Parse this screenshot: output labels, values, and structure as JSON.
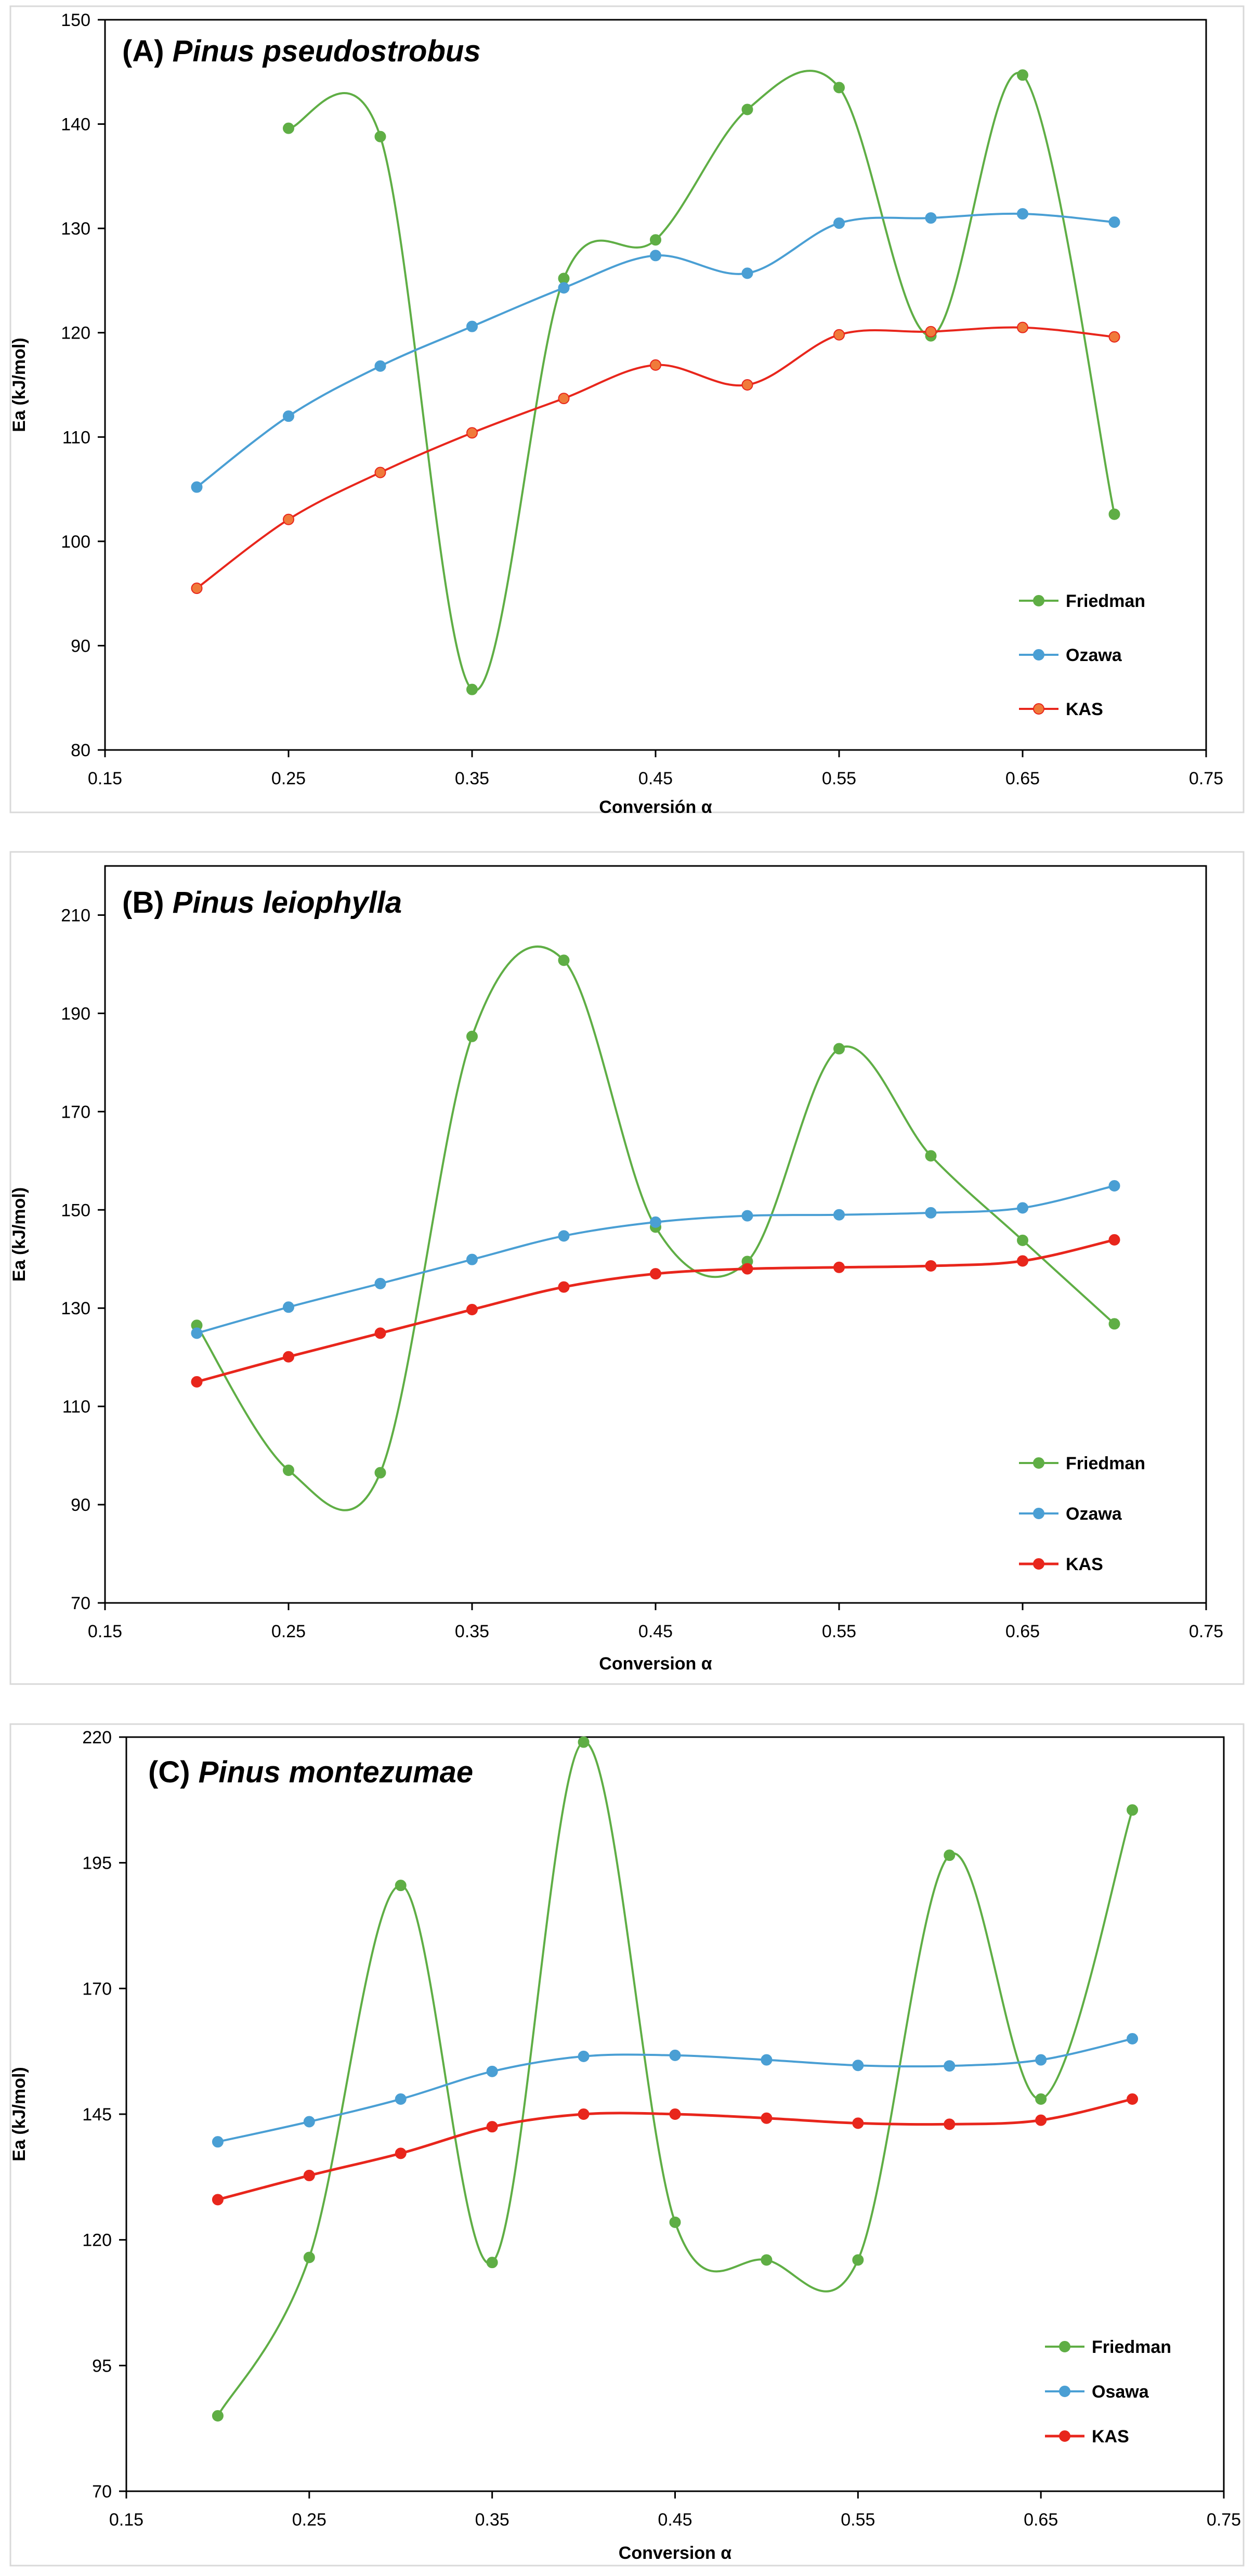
{
  "chart_data": [
    {
      "type": "line",
      "title_prefix": "(A)",
      "title_species": "Pinus pseudostrobus",
      "xlabel": "Conversión α",
      "ylabel": "Ea (kJ/mol)",
      "xlim": [
        0.15,
        0.75
      ],
      "ylim": [
        80,
        150
      ],
      "xticks": [
        0.15,
        0.25,
        0.35,
        0.45,
        0.55,
        0.65,
        0.75
      ],
      "xtick_labels": [
        "0.15",
        "0.25",
        "0.35",
        "0.45",
        "0.55",
        "0.65",
        "0.75"
      ],
      "yticks": [
        80,
        90,
        100,
        110,
        120,
        130,
        140,
        150
      ],
      "ytick_labels": [
        "80",
        "90",
        "100",
        "110",
        "120",
        "130",
        "140",
        "150"
      ],
      "grid": false,
      "legend_position": "bottom-right",
      "series": [
        {
          "name": "Friedman",
          "color": "#5fae45",
          "width": 4,
          "marker_color": "#5fae45",
          "x": [
            0.25,
            0.3,
            0.35,
            0.4,
            0.45,
            0.5,
            0.55,
            0.6,
            0.65,
            0.7
          ],
          "values": [
            139.6,
            138.8,
            85.8,
            125.2,
            128.9,
            141.4,
            143.5,
            119.7,
            144.7,
            102.6
          ]
        },
        {
          "name": "Ozawa",
          "color": "#4a9fd4",
          "width": 4,
          "marker_color": "#4a9fd4",
          "x": [
            0.2,
            0.25,
            0.3,
            0.35,
            0.4,
            0.45,
            0.5,
            0.55,
            0.6,
            0.65,
            0.7
          ],
          "values": [
            105.2,
            112.0,
            116.8,
            120.6,
            124.3,
            127.4,
            125.7,
            130.5,
            131.0,
            131.4,
            130.6
          ]
        },
        {
          "name": "KAS",
          "color": "#e8261c",
          "width": 4,
          "marker_color": "#f07a3a",
          "x": [
            0.2,
            0.25,
            0.3,
            0.35,
            0.4,
            0.45,
            0.5,
            0.55,
            0.6,
            0.65,
            0.7
          ],
          "values": [
            95.5,
            102.1,
            106.6,
            110.4,
            113.7,
            116.9,
            115.0,
            119.8,
            120.1,
            120.5,
            119.6
          ]
        }
      ]
    },
    {
      "type": "line",
      "title_prefix": "(B)",
      "title_species": "Pinus leiophylla",
      "xlabel": "Conversion α",
      "ylabel": "Ea (kJ/mol)",
      "xlim": [
        0.15,
        0.75
      ],
      "ylim": [
        70,
        220
      ],
      "xticks": [
        0.15,
        0.25,
        0.35,
        0.45,
        0.55,
        0.65,
        0.75
      ],
      "xtick_labels": [
        "0.15",
        "0.25",
        "0.35",
        "0.45",
        "0.55",
        "0.65",
        "0.75"
      ],
      "yticks": [
        70,
        90,
        110,
        130,
        150,
        170,
        190,
        210
      ],
      "ytick_labels": [
        "70",
        "90",
        "110",
        "130",
        "150",
        "170",
        "190",
        "210"
      ],
      "grid": false,
      "legend_position": "bottom-right",
      "series": [
        {
          "name": "Friedman",
          "color": "#5fae45",
          "width": 4,
          "marker_color": "#5fae45",
          "x": [
            0.2,
            0.25,
            0.3,
            0.35,
            0.4,
            0.45,
            0.5,
            0.55,
            0.6,
            0.65,
            0.7
          ],
          "values": [
            126.5,
            97.0,
            96.5,
            185.3,
            200.8,
            146.5,
            139.5,
            182.8,
            161.0,
            143.8,
            126.8
          ]
        },
        {
          "name": "Ozawa",
          "color": "#4a9fd4",
          "width": 4,
          "marker_color": "#4a9fd4",
          "x": [
            0.2,
            0.25,
            0.3,
            0.35,
            0.4,
            0.45,
            0.5,
            0.55,
            0.6,
            0.65,
            0.7
          ],
          "values": [
            124.9,
            130.2,
            135.0,
            139.9,
            144.7,
            147.5,
            148.8,
            149.0,
            149.4,
            150.4,
            154.9
          ]
        },
        {
          "name": "KAS",
          "color": "#e8261c",
          "width": 5,
          "marker_color": "#e8261c",
          "x": [
            0.2,
            0.25,
            0.3,
            0.35,
            0.4,
            0.45,
            0.5,
            0.55,
            0.6,
            0.65,
            0.7
          ],
          "values": [
            115.0,
            120.1,
            124.9,
            129.7,
            134.3,
            137.0,
            138.0,
            138.3,
            138.6,
            139.6,
            143.9
          ]
        }
      ]
    },
    {
      "type": "line",
      "title_prefix": "(C)",
      "title_species": "Pinus montezumae",
      "xlabel": "Conversion α",
      "ylabel": "Ea (kJ/mol)",
      "xlim": [
        0.15,
        0.75
      ],
      "ylim": [
        70,
        220
      ],
      "xticks": [
        0.15,
        0.25,
        0.35,
        0.45,
        0.55,
        0.65,
        0.75
      ],
      "xtick_labels": [
        "0.15",
        "0.25",
        "0.35",
        "0.45",
        "0.55",
        "0.65",
        "0.75"
      ],
      "yticks": [
        70,
        95,
        120,
        145,
        170,
        195,
        220
      ],
      "ytick_labels": [
        "70",
        "95",
        "120",
        "145",
        "170",
        "195",
        "220"
      ],
      "grid": false,
      "legend_position": "bottom-right",
      "series": [
        {
          "name": "Friedman",
          "color": "#5fae45",
          "width": 4,
          "marker_color": "#5fae45",
          "x": [
            0.2,
            0.25,
            0.3,
            0.35,
            0.4,
            0.45,
            0.5,
            0.55,
            0.6,
            0.65,
            0.7
          ],
          "values": [
            85.0,
            116.5,
            190.5,
            115.5,
            219.0,
            123.5,
            116.0,
            116.0,
            196.5,
            148.0,
            205.5
          ]
        },
        {
          "name": "Osawa",
          "color": "#4a9fd4",
          "width": 4,
          "marker_color": "#4a9fd4",
          "x": [
            0.2,
            0.25,
            0.3,
            0.35,
            0.4,
            0.45,
            0.5,
            0.55,
            0.6,
            0.65,
            0.7
          ],
          "values": [
            139.5,
            143.5,
            148.0,
            153.5,
            156.5,
            156.7,
            155.8,
            154.7,
            154.6,
            155.8,
            160.0
          ]
        },
        {
          "name": "KAS",
          "color": "#e8261c",
          "width": 5,
          "marker_color": "#e8261c",
          "x": [
            0.2,
            0.25,
            0.3,
            0.35,
            0.4,
            0.45,
            0.5,
            0.55,
            0.6,
            0.65,
            0.7
          ],
          "values": [
            128.0,
            132.8,
            137.2,
            142.5,
            145.0,
            145.0,
            144.2,
            143.2,
            143.0,
            143.8,
            148.0
          ]
        }
      ]
    }
  ]
}
